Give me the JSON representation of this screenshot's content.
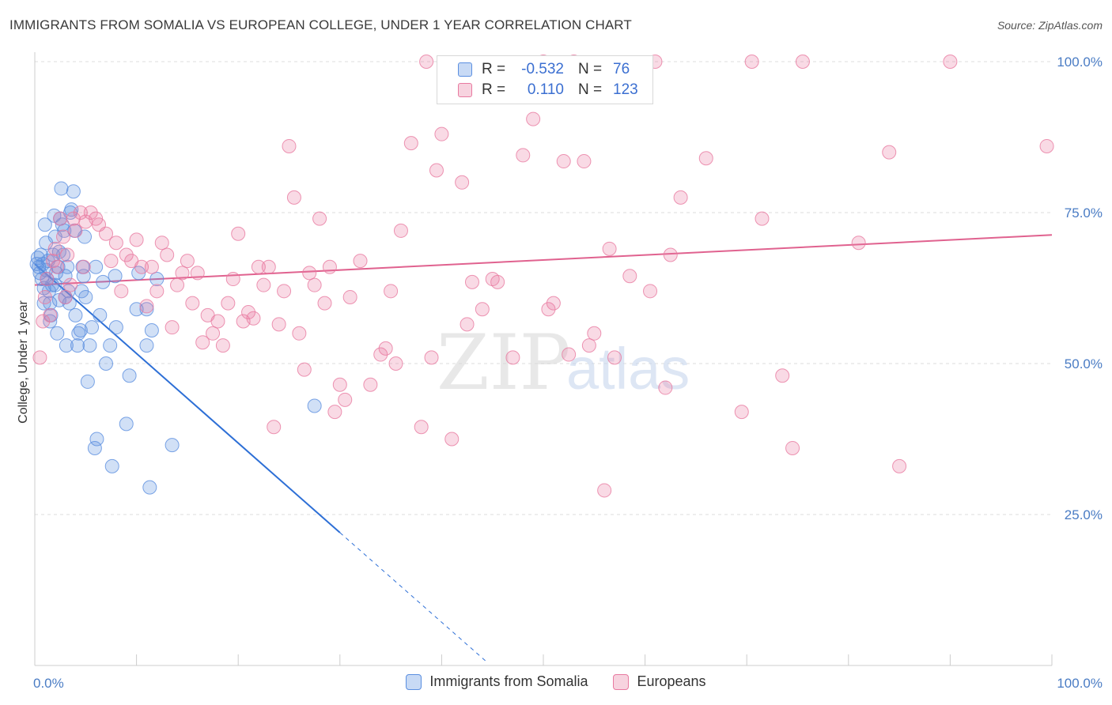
{
  "title": "IMMIGRANTS FROM SOMALIA VS EUROPEAN COLLEGE, UNDER 1 YEAR CORRELATION CHART",
  "source": "Source: ZipAtlas.com",
  "watermark": {
    "zip": "ZIP",
    "atlas": "atlas"
  },
  "legend": {
    "rows": [
      {
        "r_label": "R =",
        "r_value": "-0.532",
        "n_label": "N =",
        "n_value": "76",
        "color": "#5b8fe0"
      },
      {
        "r_label": "R =",
        "r_value": "0.110",
        "n_label": "N =",
        "n_value": "123",
        "color": "#e87aa0"
      }
    ]
  },
  "bottom_legend": [
    {
      "label": "Immigrants from Somalia",
      "color": "#5b8fe0"
    },
    {
      "label": "Europeans",
      "color": "#e87aa0"
    }
  ],
  "chart_data": {
    "type": "scatter",
    "title": "IMMIGRANTS FROM SOMALIA VS EUROPEAN COLLEGE, UNDER 1 YEAR CORRELATION CHART",
    "xlabel": "",
    "ylabel": "College, Under 1 year",
    "xlim": [
      0,
      100
    ],
    "ylim": [
      0,
      100
    ],
    "x_tick_labels": [
      "0.0%",
      "100.0%"
    ],
    "y_tick_labels": [
      "25.0%",
      "50.0%",
      "75.0%",
      "100.0%"
    ],
    "y_ticks": [
      25,
      50,
      75,
      100
    ],
    "series": [
      {
        "name": "Immigrants from Somalia",
        "color": "#5b8fe0",
        "r": -0.532,
        "n": 76,
        "trend": {
          "x0": 0,
          "y0": 66.5,
          "x1": 30,
          "y1": 22,
          "dash_to_x": 44.5
        },
        "points": [
          [
            0.3,
            67.5
          ],
          [
            0.4,
            66
          ],
          [
            0.5,
            65
          ],
          [
            0.6,
            68
          ],
          [
            0.7,
            64
          ],
          [
            0.8,
            66.5
          ],
          [
            0.9,
            62.5
          ],
          [
            1.0,
            73
          ],
          [
            1.1,
            65.5
          ],
          [
            1.2,
            64
          ],
          [
            1.3,
            67
          ],
          [
            1.4,
            62
          ],
          [
            1.5,
            60
          ],
          [
            1.6,
            58
          ],
          [
            1.7,
            63
          ],
          [
            1.8,
            68
          ],
          [
            1.9,
            74.5
          ],
          [
            2.0,
            71
          ],
          [
            2.1,
            65
          ],
          [
            2.2,
            55
          ],
          [
            2.3,
            66
          ],
          [
            2.4,
            60.5
          ],
          [
            2.5,
            74
          ],
          [
            2.6,
            79
          ],
          [
            2.7,
            73
          ],
          [
            2.8,
            68
          ],
          [
            2.9,
            72
          ],
          [
            3.0,
            64.5
          ],
          [
            3.1,
            53
          ],
          [
            3.2,
            66
          ],
          [
            3.3,
            62
          ],
          [
            3.4,
            60
          ],
          [
            3.5,
            75
          ],
          [
            3.6,
            75.5
          ],
          [
            3.8,
            78.5
          ],
          [
            3.9,
            72
          ],
          [
            4.0,
            58
          ],
          [
            4.2,
            53
          ],
          [
            4.3,
            55
          ],
          [
            4.5,
            55.5
          ],
          [
            4.7,
            66
          ],
          [
            4.8,
            64.5
          ],
          [
            4.9,
            71
          ],
          [
            5.0,
            61
          ],
          [
            5.2,
            47
          ],
          [
            5.4,
            53
          ],
          [
            5.6,
            56
          ],
          [
            6.0,
            66
          ],
          [
            6.1,
            37.5
          ],
          [
            5.9,
            36
          ],
          [
            6.4,
            58
          ],
          [
            6.7,
            63.5
          ],
          [
            7.0,
            50
          ],
          [
            7.4,
            53
          ],
          [
            7.6,
            33
          ],
          [
            8.0,
            56
          ],
          [
            7.9,
            64.5
          ],
          [
            9.0,
            40
          ],
          [
            9.3,
            48
          ],
          [
            10.0,
            59
          ],
          [
            10.2,
            65
          ],
          [
            11.0,
            53
          ],
          [
            11.5,
            55.5
          ],
          [
            12.0,
            64
          ],
          [
            11.0,
            59
          ],
          [
            11.3,
            29.5
          ],
          [
            13.5,
            36.5
          ],
          [
            27.5,
            43
          ],
          [
            1.5,
            57
          ],
          [
            3.0,
            61
          ],
          [
            2.0,
            63
          ],
          [
            0.9,
            60
          ],
          [
            1.1,
            70
          ],
          [
            2.4,
            68.5
          ],
          [
            4.6,
            62
          ],
          [
            0.2,
            66.5
          ]
        ]
      },
      {
        "name": "Europeans",
        "color": "#e87aa0",
        "r": 0.11,
        "n": 123,
        "trend": {
          "x0": 0,
          "y0": 63,
          "x1": 100,
          "y1": 71.3
        },
        "points": [
          [
            0.5,
            51
          ],
          [
            0.8,
            57
          ],
          [
            1.0,
            61
          ],
          [
            1.2,
            64
          ],
          [
            1.5,
            58
          ],
          [
            1.8,
            67
          ],
          [
            2.0,
            69
          ],
          [
            2.2,
            66
          ],
          [
            2.5,
            74
          ],
          [
            2.8,
            71
          ],
          [
            3.0,
            61
          ],
          [
            3.2,
            68
          ],
          [
            3.5,
            63
          ],
          [
            3.8,
            74
          ],
          [
            4.0,
            72
          ],
          [
            4.5,
            75
          ],
          [
            4.8,
            66
          ],
          [
            5.0,
            73.5
          ],
          [
            5.5,
            75
          ],
          [
            6.0,
            74
          ],
          [
            6.3,
            73
          ],
          [
            7.0,
            71.5
          ],
          [
            7.5,
            67
          ],
          [
            8.0,
            70
          ],
          [
            8.5,
            62
          ],
          [
            9.0,
            68
          ],
          [
            9.5,
            67
          ],
          [
            10.0,
            70.5
          ],
          [
            10.5,
            66
          ],
          [
            11.0,
            59.5
          ],
          [
            11.5,
            66
          ],
          [
            12.0,
            62
          ],
          [
            12.5,
            70
          ],
          [
            13.0,
            68
          ],
          [
            13.5,
            56
          ],
          [
            14.0,
            63
          ],
          [
            14.5,
            65
          ],
          [
            15.0,
            67
          ],
          [
            15.5,
            60
          ],
          [
            16.0,
            65
          ],
          [
            16.5,
            53.5
          ],
          [
            17.0,
            58
          ],
          [
            17.5,
            55
          ],
          [
            18.0,
            57
          ],
          [
            18.5,
            53
          ],
          [
            19.0,
            60
          ],
          [
            19.5,
            64
          ],
          [
            20.0,
            71.5
          ],
          [
            20.5,
            57
          ],
          [
            21.0,
            58.5
          ],
          [
            21.5,
            57.5
          ],
          [
            22.0,
            66
          ],
          [
            22.5,
            63
          ],
          [
            23.0,
            66
          ],
          [
            23.5,
            39.5
          ],
          [
            24.0,
            56.5
          ],
          [
            24.5,
            62
          ],
          [
            25.0,
            86
          ],
          [
            25.5,
            77.5
          ],
          [
            26.0,
            55
          ],
          [
            26.5,
            49
          ],
          [
            27.0,
            65
          ],
          [
            27.5,
            63
          ],
          [
            28.0,
            74
          ],
          [
            28.5,
            60
          ],
          [
            29.0,
            66
          ],
          [
            29.5,
            42
          ],
          [
            30.0,
            46.5
          ],
          [
            30.5,
            44
          ],
          [
            31.0,
            61
          ],
          [
            32.0,
            67
          ],
          [
            33.0,
            46.5
          ],
          [
            34.0,
            51.5
          ],
          [
            34.5,
            52.5
          ],
          [
            35.0,
            62
          ],
          [
            35.5,
            50
          ],
          [
            36.0,
            72
          ],
          [
            37.0,
            86.5
          ],
          [
            38.0,
            39.5
          ],
          [
            38.5,
            100
          ],
          [
            39.0,
            51
          ],
          [
            39.5,
            82
          ],
          [
            40.0,
            88
          ],
          [
            41.0,
            37.5
          ],
          [
            42.0,
            80
          ],
          [
            42.5,
            56.5
          ],
          [
            43.0,
            63.5
          ],
          [
            44.0,
            59
          ],
          [
            45.0,
            64
          ],
          [
            45.5,
            63.5
          ],
          [
            47.0,
            51
          ],
          [
            48.0,
            84.5
          ],
          [
            49.0,
            90.5
          ],
          [
            50.0,
            100
          ],
          [
            50.5,
            59
          ],
          [
            51.0,
            60
          ],
          [
            52.0,
            83.5
          ],
          [
            52.5,
            51.5
          ],
          [
            53.0,
            100
          ],
          [
            54.0,
            83.5
          ],
          [
            54.5,
            53
          ],
          [
            55.0,
            55
          ],
          [
            56.0,
            29
          ],
          [
            56.5,
            69
          ],
          [
            57.0,
            51
          ],
          [
            58.5,
            64.5
          ],
          [
            60.5,
            62
          ],
          [
            61.0,
            100
          ],
          [
            62.0,
            46
          ],
          [
            62.5,
            68
          ],
          [
            63.5,
            77.5
          ],
          [
            66.0,
            84
          ],
          [
            69.5,
            42
          ],
          [
            70.5,
            100
          ],
          [
            71.5,
            74
          ],
          [
            73.5,
            48
          ],
          [
            74.5,
            36
          ],
          [
            75.5,
            100
          ],
          [
            81.0,
            70
          ],
          [
            84.0,
            85
          ],
          [
            85.0,
            33
          ],
          [
            90.0,
            100
          ],
          [
            99.5,
            86
          ]
        ]
      }
    ]
  }
}
